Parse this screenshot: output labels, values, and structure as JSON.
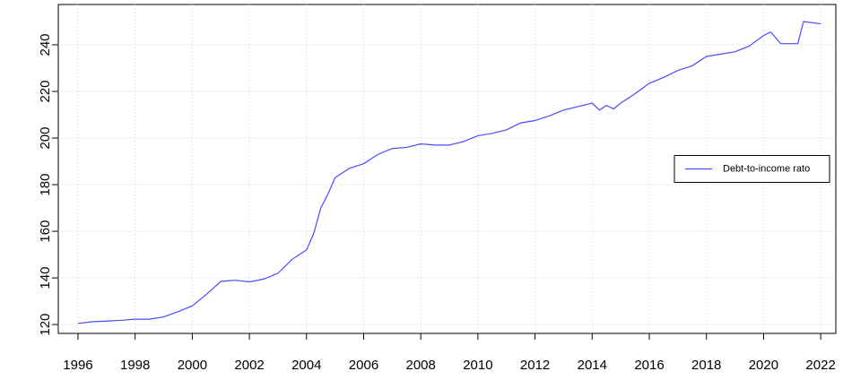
{
  "chart_data": {
    "type": "line",
    "x": [
      1996,
      1996.5,
      1997,
      1997.5,
      1998,
      1998.5,
      1999,
      1999.5,
      2000,
      2000.5,
      2001,
      2001.5,
      2002,
      2002.5,
      2003,
      2003.5,
      2004,
      2004.25,
      2004.5,
      2004.75,
      2005,
      2005.5,
      2006,
      2006.5,
      2007,
      2007.5,
      2008,
      2008.5,
      2009,
      2009.5,
      2010,
      2010.5,
      2011,
      2011.5,
      2012,
      2012.5,
      2013,
      2013.5,
      2014,
      2014.25,
      2014.5,
      2014.75,
      2015,
      2015.5,
      2016,
      2016.5,
      2017,
      2017.5,
      2018,
      2018.5,
      2019,
      2019.5,
      2020,
      2020.25,
      2020.6,
      2021,
      2021.2,
      2021.4,
      2022
    ],
    "series": [
      {
        "name": "Debt-to-income rato",
        "color": "#4b4bff",
        "values": [
          120.5,
          121.2,
          121.5,
          121.8,
          122.3,
          122.3,
          123.3,
          125.5,
          128,
          133,
          138.5,
          139,
          138.3,
          139.5,
          142,
          148,
          152,
          159,
          170,
          176,
          183,
          187,
          189,
          193,
          195.5,
          196,
          197.5,
          197,
          197,
          198.5,
          201,
          202,
          203.5,
          206.5,
          207.5,
          209.5,
          212,
          213.5,
          215,
          212,
          214,
          212.5,
          215,
          219,
          223.5,
          226,
          229,
          231,
          235,
          236,
          237,
          239.5,
          244,
          245.5,
          240.5,
          240.5,
          240.5,
          250,
          249
        ]
      }
    ],
    "xlim": [
      1995.31,
      2022.53
    ],
    "xticks": [
      1996,
      1998,
      2000,
      2002,
      2004,
      2006,
      2008,
      2010,
      2012,
      2014,
      2016,
      2018,
      2020,
      2022
    ],
    "ylim": [
      116.2,
      257.3
    ],
    "yticks": [
      120,
      140,
      160,
      180,
      200,
      220,
      240
    ],
    "grid": true,
    "legend": "right"
  }
}
